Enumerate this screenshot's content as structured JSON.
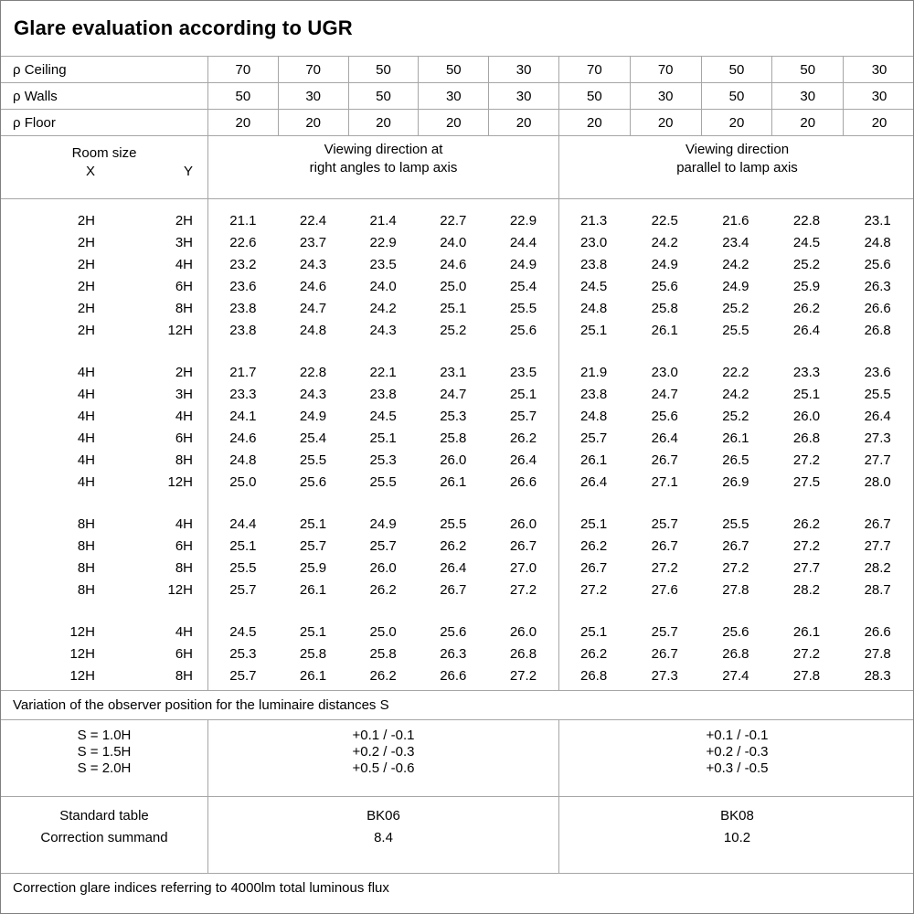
{
  "title": "Glare evaluation according to UGR",
  "reflectance_rows": [
    {
      "label": "ρ Ceiling",
      "values": [
        "70",
        "70",
        "50",
        "50",
        "30",
        "70",
        "70",
        "50",
        "50",
        "30"
      ]
    },
    {
      "label": "ρ Walls",
      "values": [
        "50",
        "30",
        "50",
        "30",
        "30",
        "50",
        "30",
        "50",
        "30",
        "30"
      ]
    },
    {
      "label": "ρ Floor",
      "values": [
        "20",
        "20",
        "20",
        "20",
        "20",
        "20",
        "20",
        "20",
        "20",
        "20"
      ]
    }
  ],
  "room_header": {
    "title": "Room size",
    "x": "X",
    "y": "Y"
  },
  "group_headers": {
    "right_angles_line1": "Viewing direction at",
    "right_angles_line2": "right angles to lamp axis",
    "parallel_line1": "Viewing direction",
    "parallel_line2": "parallel to lamp axis"
  },
  "ugr_blocks": [
    {
      "rows": [
        {
          "x": "2H",
          "y": "2H",
          "right_angles": [
            "21.1",
            "22.4",
            "21.4",
            "22.7",
            "22.9"
          ],
          "parallel": [
            "21.3",
            "22.5",
            "21.6",
            "22.8",
            "23.1"
          ]
        },
        {
          "x": "2H",
          "y": "3H",
          "right_angles": [
            "22.6",
            "23.7",
            "22.9",
            "24.0",
            "24.4"
          ],
          "parallel": [
            "23.0",
            "24.2",
            "23.4",
            "24.5",
            "24.8"
          ]
        },
        {
          "x": "2H",
          "y": "4H",
          "right_angles": [
            "23.2",
            "24.3",
            "23.5",
            "24.6",
            "24.9"
          ],
          "parallel": [
            "23.8",
            "24.9",
            "24.2",
            "25.2",
            "25.6"
          ]
        },
        {
          "x": "2H",
          "y": "6H",
          "right_angles": [
            "23.6",
            "24.6",
            "24.0",
            "25.0",
            "25.4"
          ],
          "parallel": [
            "24.5",
            "25.6",
            "24.9",
            "25.9",
            "26.3"
          ]
        },
        {
          "x": "2H",
          "y": "8H",
          "right_angles": [
            "23.8",
            "24.7",
            "24.2",
            "25.1",
            "25.5"
          ],
          "parallel": [
            "24.8",
            "25.8",
            "25.2",
            "26.2",
            "26.6"
          ]
        },
        {
          "x": "2H",
          "y": "12H",
          "right_angles": [
            "23.8",
            "24.8",
            "24.3",
            "25.2",
            "25.6"
          ],
          "parallel": [
            "25.1",
            "26.1",
            "25.5",
            "26.4",
            "26.8"
          ]
        }
      ]
    },
    {
      "rows": [
        {
          "x": "4H",
          "y": "2H",
          "right_angles": [
            "21.7",
            "22.8",
            "22.1",
            "23.1",
            "23.5"
          ],
          "parallel": [
            "21.9",
            "23.0",
            "22.2",
            "23.3",
            "23.6"
          ]
        },
        {
          "x": "4H",
          "y": "3H",
          "right_angles": [
            "23.3",
            "24.3",
            "23.8",
            "24.7",
            "25.1"
          ],
          "parallel": [
            "23.8",
            "24.7",
            "24.2",
            "25.1",
            "25.5"
          ]
        },
        {
          "x": "4H",
          "y": "4H",
          "right_angles": [
            "24.1",
            "24.9",
            "24.5",
            "25.3",
            "25.7"
          ],
          "parallel": [
            "24.8",
            "25.6",
            "25.2",
            "26.0",
            "26.4"
          ]
        },
        {
          "x": "4H",
          "y": "6H",
          "right_angles": [
            "24.6",
            "25.4",
            "25.1",
            "25.8",
            "26.2"
          ],
          "parallel": [
            "25.7",
            "26.4",
            "26.1",
            "26.8",
            "27.3"
          ]
        },
        {
          "x": "4H",
          "y": "8H",
          "right_angles": [
            "24.8",
            "25.5",
            "25.3",
            "26.0",
            "26.4"
          ],
          "parallel": [
            "26.1",
            "26.7",
            "26.5",
            "27.2",
            "27.7"
          ]
        },
        {
          "x": "4H",
          "y": "12H",
          "right_angles": [
            "25.0",
            "25.6",
            "25.5",
            "26.1",
            "26.6"
          ],
          "parallel": [
            "26.4",
            "27.1",
            "26.9",
            "27.5",
            "28.0"
          ]
        }
      ]
    },
    {
      "rows": [
        {
          "x": "8H",
          "y": "4H",
          "right_angles": [
            "24.4",
            "25.1",
            "24.9",
            "25.5",
            "26.0"
          ],
          "parallel": [
            "25.1",
            "25.7",
            "25.5",
            "26.2",
            "26.7"
          ]
        },
        {
          "x": "8H",
          "y": "6H",
          "right_angles": [
            "25.1",
            "25.7",
            "25.7",
            "26.2",
            "26.7"
          ],
          "parallel": [
            "26.2",
            "26.7",
            "26.7",
            "27.2",
            "27.7"
          ]
        },
        {
          "x": "8H",
          "y": "8H",
          "right_angles": [
            "25.5",
            "25.9",
            "26.0",
            "26.4",
            "27.0"
          ],
          "parallel": [
            "26.7",
            "27.2",
            "27.2",
            "27.7",
            "28.2"
          ]
        },
        {
          "x": "8H",
          "y": "12H",
          "right_angles": [
            "25.7",
            "26.1",
            "26.2",
            "26.7",
            "27.2"
          ],
          "parallel": [
            "27.2",
            "27.6",
            "27.8",
            "28.2",
            "28.7"
          ]
        }
      ]
    },
    {
      "rows": [
        {
          "x": "12H",
          "y": "4H",
          "right_angles": [
            "24.5",
            "25.1",
            "25.0",
            "25.6",
            "26.0"
          ],
          "parallel": [
            "25.1",
            "25.7",
            "25.6",
            "26.1",
            "26.6"
          ]
        },
        {
          "x": "12H",
          "y": "6H",
          "right_angles": [
            "25.3",
            "25.8",
            "25.8",
            "26.3",
            "26.8"
          ],
          "parallel": [
            "26.2",
            "26.7",
            "26.8",
            "27.2",
            "27.8"
          ]
        },
        {
          "x": "12H",
          "y": "8H",
          "right_angles": [
            "25.7",
            "26.1",
            "26.2",
            "26.6",
            "27.2"
          ],
          "parallel": [
            "26.8",
            "27.3",
            "27.4",
            "27.8",
            "28.3"
          ]
        }
      ]
    }
  ],
  "variation_note": "Variation of the observer position for the luminaire distances S",
  "variation_rows": [
    {
      "label": "S = 1.0H",
      "right_angles": "+0.1 / -0.1",
      "parallel": "+0.1 / -0.1"
    },
    {
      "label": "S = 1.5H",
      "right_angles": "+0.2 / -0.3",
      "parallel": "+0.2 / -0.3"
    },
    {
      "label": "S = 2.0H",
      "right_angles": "+0.5 / -0.6",
      "parallel": "+0.3 / -0.5"
    }
  ],
  "summary_rows": [
    {
      "label": "Standard table",
      "right_angles": "BK06",
      "parallel": "BK08"
    },
    {
      "label": "Correction summand",
      "right_angles": "8.4",
      "parallel": "10.2"
    }
  ],
  "footer_note": "Correction glare indices referring to 4000lm total luminous flux",
  "colors": {
    "grid_line": "#a6a6a6",
    "outer_border": "#808080",
    "text": "#000000",
    "background": "#ffffff"
  }
}
